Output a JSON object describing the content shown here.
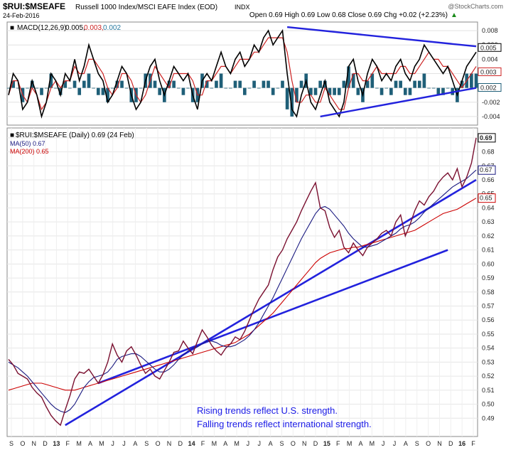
{
  "header": {
    "symbol": "$RUI:$MSEAFE",
    "index_name": "Russell 1000 Index/MSCI EAFE Index (EOD)",
    "exchange": "INDX",
    "date": "24-Feb-2016",
    "watermark": "@StockCharts.com",
    "quote": "Open 0.69  High 0.69  Low 0.68  Close 0.69  Chg +0.02 (+2.23%)",
    "quote_chg_symbol": "▲"
  },
  "macd_legend": {
    "label": "MACD(12,26,9)",
    "v1": "0.005,",
    "v2": "0.003,",
    "v3": "0.002"
  },
  "price_legend": {
    "main": "$RUI:$MSEAFE (Daily) 0.69 (24 Feb)",
    "ma50": "MA(50) 0.67",
    "ma200": "MA(200) 0.65"
  },
  "annotations": [
    "Rising trends reflect U.S. strength.",
    "Falling trends reflect international strength."
  ],
  "colors": {
    "price": "#7a1030",
    "ma50": "#1a1a80",
    "ma200": "#cc0000",
    "trendline": "#2222dd",
    "macd": "#000000",
    "signal": "#cc2222",
    "histogram": "#1f5f78",
    "annotation": "#1a1ae6"
  },
  "chart_data": [
    {
      "type": "line",
      "panel": "MACD(12,26,9)",
      "ylim": [
        -0.005,
        0.009
      ],
      "yticks": [
        "0.008",
        "0.006",
        "0.004",
        "0.002",
        "0.000",
        "-0.002",
        "-0.004"
      ],
      "last_value_labels": [
        "0.005",
        "0.003",
        "0.002"
      ],
      "macd": [
        -0.001,
        0.002,
        0.001,
        -0.003,
        -0.002,
        0.001,
        -0.001,
        -0.004,
        -0.002,
        0.002,
        0.001,
        -0.001,
        0.002,
        0.001,
        0.004,
        0.001,
        0.003,
        0.006,
        0.004,
        0.002,
        0.001,
        -0.002,
        -0.001,
        0.001,
        0.003,
        0.002,
        -0.001,
        -0.003,
        -0.002,
        0.001,
        0.003,
        0.004,
        0.001,
        -0.001,
        0.001,
        0.003,
        0.002,
        0.001,
        0.002,
        -0.001,
        -0.003,
        0.001,
        0.002,
        0.001,
        0.003,
        0.005,
        0.003,
        0.002,
        0.004,
        0.005,
        0.003,
        0.004,
        0.006,
        0.005,
        0.007,
        0.008,
        0.006,
        0.007,
        0.008,
        0.002,
        -0.003,
        -0.004,
        -0.001,
        0.001,
        -0.002,
        -0.003,
        -0.001,
        0.001,
        -0.002,
        -0.003,
        -0.004,
        -0.002,
        0.003,
        0.004,
        0.001,
        -0.001,
        0.002,
        0.004,
        0.003,
        0.001,
        0.002,
        0.001,
        0.003,
        0.004,
        0.002,
        0.001,
        0.003,
        0.004,
        0.006,
        0.005,
        0.004,
        0.003,
        0.002,
        0.003,
        0.001,
        -0.001,
        0.001,
        0.003,
        0.004,
        0.005
      ],
      "signal": [
        -0.001,
        0.001,
        0.001,
        -0.001,
        -0.002,
        0.0,
        -0.001,
        -0.003,
        -0.002,
        0.0,
        0.001,
        0.0,
        0.001,
        0.001,
        0.003,
        0.002,
        0.002,
        0.004,
        0.004,
        0.003,
        0.002,
        0.0,
        -0.001,
        0.0,
        0.002,
        0.002,
        0.001,
        -0.001,
        -0.002,
        -0.001,
        0.001,
        0.003,
        0.002,
        0.001,
        0.0,
        0.002,
        0.002,
        0.002,
        0.002,
        0.001,
        -0.001,
        -0.001,
        0.001,
        0.001,
        0.002,
        0.003,
        0.003,
        0.002,
        0.003,
        0.004,
        0.004,
        0.004,
        0.005,
        0.005,
        0.006,
        0.007,
        0.007,
        0.007,
        0.007,
        0.005,
        0.001,
        -0.002,
        -0.002,
        -0.001,
        -0.001,
        -0.002,
        -0.002,
        0.0,
        -0.001,
        -0.002,
        -0.003,
        -0.003,
        0.0,
        0.002,
        0.002,
        0.001,
        0.001,
        0.002,
        0.003,
        0.002,
        0.002,
        0.002,
        0.002,
        0.003,
        0.003,
        0.002,
        0.002,
        0.003,
        0.004,
        0.005,
        0.004,
        0.004,
        0.003,
        0.003,
        0.002,
        0.001,
        0.0,
        0.001,
        0.002,
        0.003
      ],
      "macd_trendlines": [
        {
          "from": [
            59,
            0.0085
          ],
          "to": [
            99,
            0.0058
          ]
        },
        {
          "from": [
            66,
            -0.004
          ],
          "to": [
            99,
            0.0
          ]
        }
      ]
    },
    {
      "type": "line",
      "panel": "$RUI:$MSEAFE (Daily)",
      "ylim": [
        0.48,
        0.695
      ],
      "yticks": [
        "0.69",
        "0.68",
        "0.67",
        "0.66",
        "0.65",
        "0.64",
        "0.63",
        "0.62",
        "0.61",
        "0.60",
        "0.59",
        "0.58",
        "0.57",
        "0.56",
        "0.55",
        "0.54",
        "0.53",
        "0.52",
        "0.51",
        "0.50",
        "0.49"
      ],
      "last_value_labels": [
        "0.69",
        "0.67",
        "0.65"
      ],
      "x_month_labels": [
        "S",
        "O",
        "N",
        "D",
        "13",
        "F",
        "M",
        "A",
        "M",
        "J",
        "J",
        "A",
        "S",
        "O",
        "N",
        "D",
        "14",
        "F",
        "M",
        "A",
        "M",
        "J",
        "J",
        "A",
        "S",
        "O",
        "N",
        "D",
        "15",
        "F",
        "M",
        "A",
        "M",
        "J",
        "J",
        "A",
        "S",
        "O",
        "N",
        "D",
        "16",
        "F"
      ],
      "price": [
        0.532,
        0.528,
        0.522,
        0.52,
        0.518,
        0.512,
        0.508,
        0.505,
        0.498,
        0.492,
        0.488,
        0.485,
        0.496,
        0.506,
        0.518,
        0.523,
        0.522,
        0.525,
        0.52,
        0.515,
        0.521,
        0.53,
        0.543,
        0.535,
        0.53,
        0.538,
        0.541,
        0.535,
        0.528,
        0.522,
        0.525,
        0.52,
        0.518,
        0.524,
        0.53,
        0.537,
        0.538,
        0.545,
        0.54,
        0.536,
        0.545,
        0.553,
        0.548,
        0.542,
        0.538,
        0.535,
        0.54,
        0.543,
        0.548,
        0.546,
        0.552,
        0.56,
        0.568,
        0.575,
        0.58,
        0.585,
        0.596,
        0.605,
        0.61,
        0.618,
        0.624,
        0.63,
        0.638,
        0.645,
        0.652,
        0.658,
        0.64,
        0.638,
        0.626,
        0.619,
        0.624,
        0.612,
        0.608,
        0.615,
        0.61,
        0.606,
        0.612,
        0.615,
        0.618,
        0.622,
        0.624,
        0.62,
        0.63,
        0.635,
        0.62,
        0.628,
        0.638,
        0.645,
        0.642,
        0.648,
        0.652,
        0.658,
        0.662,
        0.665,
        0.66,
        0.668,
        0.655,
        0.662,
        0.672,
        0.69
      ],
      "ma50": [
        0.53,
        0.528,
        0.526,
        0.523,
        0.52,
        0.516,
        0.512,
        0.508,
        0.504,
        0.5,
        0.497,
        0.495,
        0.494,
        0.496,
        0.5,
        0.506,
        0.512,
        0.516,
        0.519,
        0.52,
        0.521,
        0.523,
        0.527,
        0.532,
        0.534,
        0.535,
        0.536,
        0.536,
        0.534,
        0.531,
        0.528,
        0.525,
        0.523,
        0.523,
        0.525,
        0.528,
        0.532,
        0.535,
        0.538,
        0.54,
        0.541,
        0.543,
        0.545,
        0.545,
        0.544,
        0.542,
        0.541,
        0.541,
        0.542,
        0.544,
        0.546,
        0.549,
        0.553,
        0.558,
        0.564,
        0.57,
        0.576,
        0.583,
        0.59,
        0.597,
        0.604,
        0.611,
        0.618,
        0.624,
        0.63,
        0.636,
        0.64,
        0.641,
        0.639,
        0.635,
        0.631,
        0.627,
        0.622,
        0.618,
        0.615,
        0.612,
        0.612,
        0.613,
        0.614,
        0.616,
        0.618,
        0.62,
        0.622,
        0.625,
        0.627,
        0.628,
        0.63,
        0.633,
        0.637,
        0.64,
        0.643,
        0.646,
        0.649,
        0.652,
        0.655,
        0.657,
        0.659,
        0.661,
        0.664,
        0.667
      ],
      "ma200": [
        0.51,
        0.511,
        0.512,
        0.513,
        0.514,
        0.515,
        0.515,
        0.515,
        0.514,
        0.513,
        0.512,
        0.511,
        0.51,
        0.51,
        0.51,
        0.511,
        0.512,
        0.513,
        0.514,
        0.515,
        0.516,
        0.517,
        0.518,
        0.519,
        0.52,
        0.521,
        0.522,
        0.523,
        0.524,
        0.525,
        0.526,
        0.527,
        0.528,
        0.529,
        0.53,
        0.531,
        0.532,
        0.533,
        0.534,
        0.535,
        0.536,
        0.537,
        0.538,
        0.539,
        0.54,
        0.541,
        0.542,
        0.543,
        0.544,
        0.546,
        0.548,
        0.55,
        0.553,
        0.556,
        0.559,
        0.562,
        0.565,
        0.569,
        0.573,
        0.577,
        0.581,
        0.585,
        0.589,
        0.593,
        0.597,
        0.601,
        0.604,
        0.606,
        0.608,
        0.609,
        0.61,
        0.611,
        0.611,
        0.612,
        0.612,
        0.613,
        0.614,
        0.615,
        0.616,
        0.617,
        0.618,
        0.619,
        0.62,
        0.621,
        0.622,
        0.623,
        0.624,
        0.626,
        0.628,
        0.63,
        0.632,
        0.634,
        0.636,
        0.637,
        0.638,
        0.639,
        0.641,
        0.643,
        0.645,
        0.647
      ],
      "trendlines": [
        {
          "from": [
            12,
            0.485
          ],
          "to": [
            99,
            0.66
          ]
        },
        {
          "from": [
            19,
            0.515
          ],
          "to": [
            93,
            0.61
          ]
        }
      ]
    }
  ]
}
